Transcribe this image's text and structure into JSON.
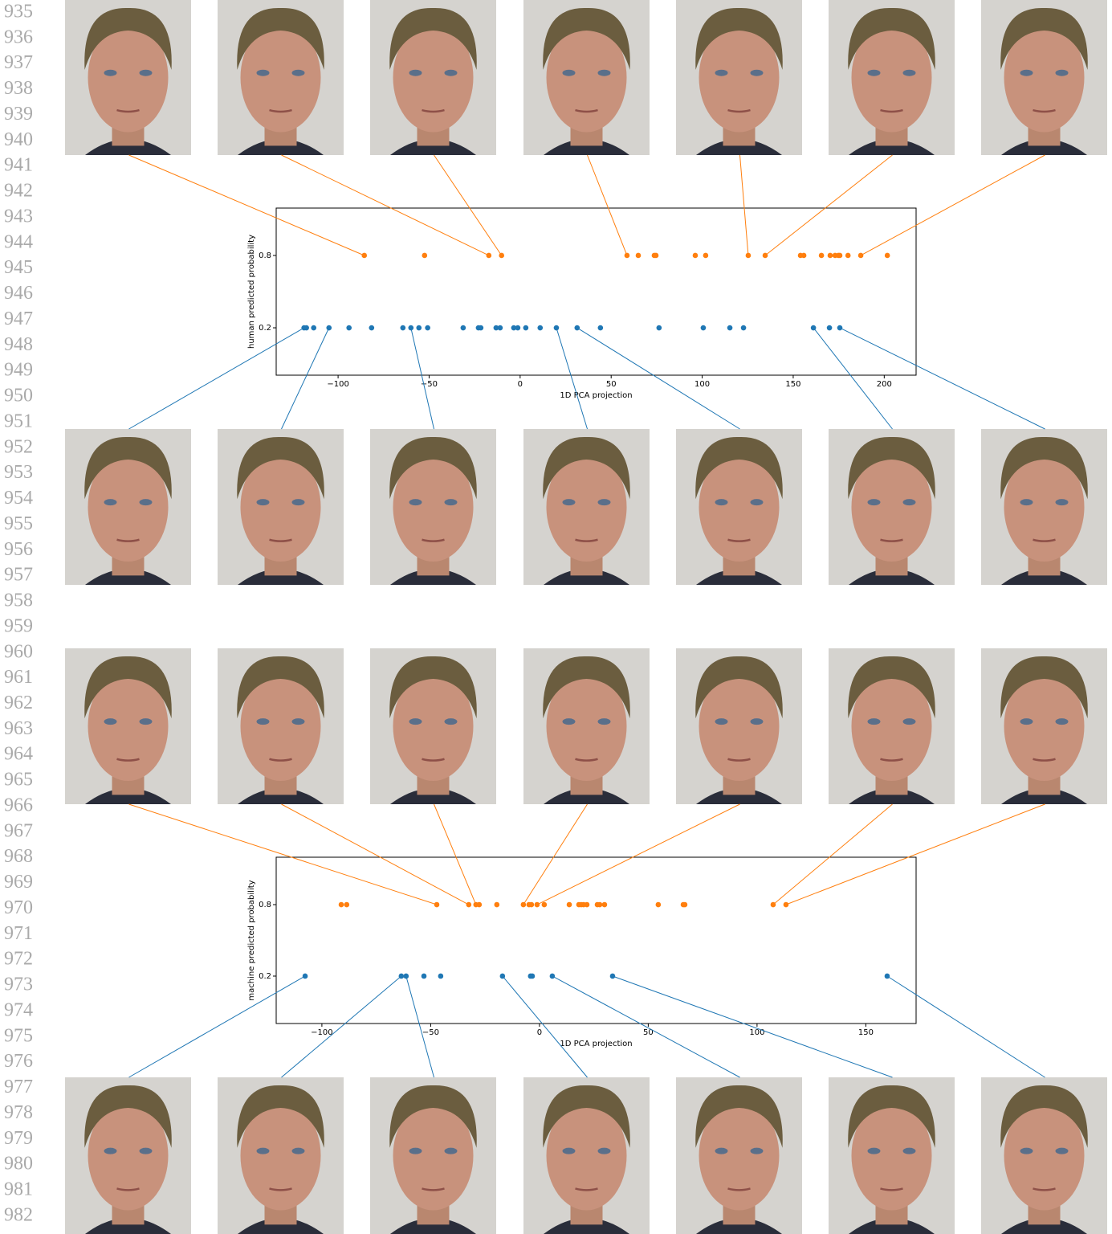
{
  "line_numbers": [
    935,
    936,
    937,
    938,
    939,
    940,
    941,
    942,
    943,
    944,
    945,
    946,
    947,
    948,
    949,
    950,
    951,
    952,
    953,
    954,
    955,
    956,
    957,
    958,
    959,
    960,
    961,
    962,
    963,
    964,
    965,
    966,
    967,
    968,
    969,
    970,
    971,
    972,
    973,
    974,
    975,
    976,
    977,
    978,
    979,
    980,
    981,
    982
  ],
  "chart_data": [
    {
      "type": "scatter",
      "xlabel": "1D PCA projection",
      "ylabel": "human predicted probability",
      "xlim": [
        -134,
        217.5
      ],
      "xticks": [
        {
          "value": -100,
          "label": "−100"
        },
        {
          "value": -50,
          "label": "−50"
        },
        0,
        50,
        100,
        150,
        200
      ],
      "ylim": [
        -0.193,
        1.193
      ],
      "yticks": [
        0.2,
        0.8
      ],
      "series": [
        {
          "color": "#ff7f0e",
          "x": [
            -85.6,
            -52.5,
            -17.2,
            -10.2,
            58.7,
            64.9,
            73.7,
            74.6,
            96.2,
            101.9,
            125.3,
            134.6,
            154.0,
            155.8,
            165.5,
            170.3,
            173.0,
            174.8,
            175.6,
            180.1,
            187.1,
            201.7
          ],
          "values": [
            0.8,
            0.8,
            0.8,
            0.8,
            0.8,
            0.8,
            0.8,
            0.8,
            0.8,
            0.8,
            0.8,
            0.8,
            0.8,
            0.8,
            0.8,
            0.8,
            0.8,
            0.8,
            0.8,
            0.8,
            0.8,
            0.8
          ]
        },
        {
          "color": "#1f77b4",
          "x": [
            -118.7,
            -117.4,
            -113.4,
            -105.0,
            -94.0,
            -81.6,
            -64.4,
            -60.0,
            -55.6,
            -50.8,
            -31.3,
            -22.9,
            -21.6,
            -13.2,
            -11.0,
            -3.5,
            -1.3,
            3.1,
            11.0,
            19.9,
            31.3,
            44.1,
            76.3,
            100.6,
            115.2,
            122.7,
            161.1,
            169.9,
            175.6
          ],
          "values": [
            0.2,
            0.2,
            0.2,
            0.2,
            0.2,
            0.2,
            0.2,
            0.2,
            0.2,
            0.2,
            0.2,
            0.2,
            0.2,
            0.2,
            0.2,
            0.2,
            0.2,
            0.2,
            0.2,
            0.2,
            0.2,
            0.2,
            0.2,
            0.2,
            0.2,
            0.2,
            0.2,
            0.2,
            0.2
          ]
        }
      ]
    },
    {
      "type": "scatter",
      "xlabel": "1D PCA projection",
      "ylabel": "machine predicted probability",
      "xlim": [
        -121,
        173.1
      ],
      "xticks": [
        {
          "value": -100,
          "label": "−100"
        },
        {
          "value": -50,
          "label": "−50"
        },
        0,
        50,
        100,
        150
      ],
      "ylim": [
        -0.198,
        1.198
      ],
      "yticks": [
        0.2,
        0.8
      ],
      "series": [
        {
          "color": "#ff7f0e",
          "x": [
            -91.1,
            -88.6,
            -47.2,
            -32.5,
            -29.2,
            -27.7,
            -19.6,
            -7.4,
            -4.8,
            -3.7,
            -1.1,
            2.2,
            13.7,
            18.1,
            19.2,
            20.3,
            21.8,
            26.6,
            27.7,
            29.9,
            54.6,
            66.1,
            66.8,
            107.4,
            113.3
          ],
          "values": [
            0.8,
            0.8,
            0.8,
            0.8,
            0.8,
            0.8,
            0.8,
            0.8,
            0.8,
            0.8,
            0.8,
            0.8,
            0.8,
            0.8,
            0.8,
            0.8,
            0.8,
            0.8,
            0.8,
            0.8,
            0.8,
            0.8,
            0.8,
            0.8,
            0.8
          ]
        },
        {
          "color": "#1f77b4",
          "x": [
            -107.7,
            -63.5,
            -61.3,
            -53.1,
            -45.4,
            -17.0,
            -4.1,
            -3.3,
            5.9,
            33.6,
            159.8
          ],
          "values": [
            0.2,
            0.2,
            0.2,
            0.2,
            0.2,
            0.2,
            0.2,
            0.2,
            0.2,
            0.2,
            0.2
          ]
        }
      ]
    }
  ]
}
